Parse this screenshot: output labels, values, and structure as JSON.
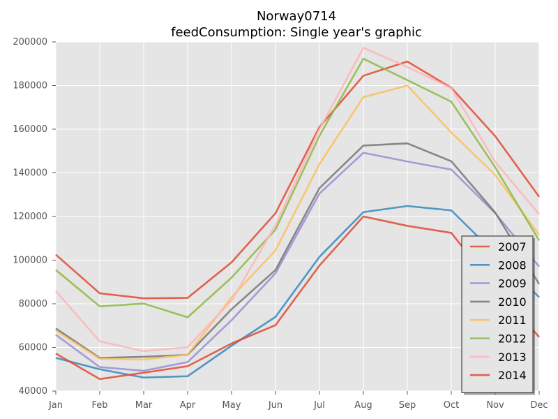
{
  "chart_data": {
    "type": "line",
    "title": "Norway0714",
    "subtitle": "feedConsumption: Single year's graphic",
    "xlabel": "",
    "ylabel": "",
    "categories": [
      "Jan",
      "Feb",
      "Mar",
      "Apr",
      "May",
      "Jun",
      "Jul",
      "Aug",
      "Sep",
      "Oct",
      "Nov",
      "Dec"
    ],
    "ylim": [
      40000,
      200000
    ],
    "yticks": [
      40000,
      60000,
      80000,
      100000,
      120000,
      140000,
      160000,
      180000,
      200000
    ],
    "ytick_labels": [
      "40000",
      "60000",
      "80000",
      "100000",
      "120000",
      "140000",
      "160000",
      "180000",
      "200000"
    ],
    "grid": true,
    "legend_position": "lower-right",
    "series": [
      {
        "name": "2007",
        "color": "#e24a33",
        "values": [
          102500,
          84800,
          82500,
          82700,
          99000,
          121500,
          161000,
          184500,
          191000,
          179000,
          156800,
          129000
        ]
      },
      {
        "name": "2008",
        "color": "#348abd",
        "values": [
          55200,
          50000,
          46200,
          46800,
          60800,
          74000,
          101500,
          122000,
          124800,
          122800,
          103000,
          83000
        ]
      },
      {
        "name": "2009",
        "color": "#988ed5",
        "values": [
          65800,
          51000,
          49300,
          53300,
          72500,
          94000,
          130500,
          149200,
          145200,
          141500,
          121500,
          97000
        ]
      },
      {
        "name": "2010",
        "color": "#777777",
        "values": [
          68700,
          55200,
          55700,
          56600,
          77500,
          95500,
          133000,
          152500,
          153500,
          145300,
          121800,
          89000
        ]
      },
      {
        "name": "2011",
        "color": "#fbc15e",
        "values": [
          67700,
          54800,
          54400,
          56700,
          83000,
          104500,
          144000,
          174700,
          180000,
          158500,
          139000,
          111500
        ]
      },
      {
        "name": "2012",
        "color": "#8eba42",
        "values": [
          95500,
          78800,
          80100,
          73800,
          92000,
          114000,
          157000,
          192300,
          182500,
          172600,
          142500,
          109000
        ]
      },
      {
        "name": "2013",
        "color": "#ffb5b8",
        "values": [
          85800,
          62800,
          58300,
          60100,
          81500,
          116000,
          160000,
          197300,
          188500,
          178800,
          145000,
          121000
        ]
      },
      {
        "name": "2014",
        "color": "#e24a33",
        "values": [
          57200,
          45500,
          48400,
          51400,
          61800,
          70200,
          97500,
          120000,
          115700,
          112500,
          87000,
          64800
        ]
      }
    ]
  }
}
